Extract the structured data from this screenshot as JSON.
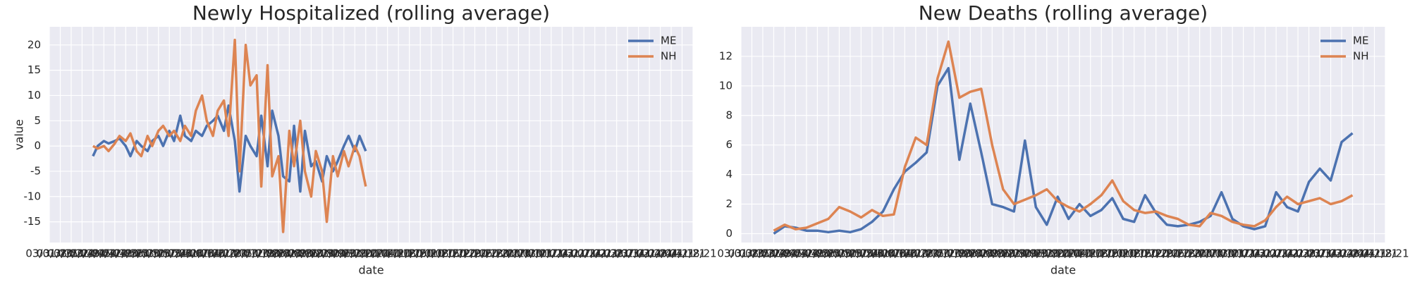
{
  "chart_data": [
    {
      "type": "line",
      "title": "Newly Hospitalized (rolling average)",
      "xlabel": "date",
      "ylabel": "value",
      "grid": true,
      "legend": "upper right",
      "xlim": [
        "03/01/20",
        "04/18/21"
      ],
      "xticks": [
        "03/01/20",
        "03/08/20",
        "03/15/20",
        "03/22/20",
        "03/29/20",
        "04/05/20",
        "04/12/20",
        "04/19/20",
        "04/26/20",
        "05/03/20",
        "05/10/20",
        "05/17/20",
        "05/24/20",
        "05/31/20",
        "06/07/20",
        "06/14/20",
        "06/21/20",
        "06/28/20",
        "07/05/20",
        "07/12/20",
        "07/19/20",
        "07/26/20",
        "08/02/20",
        "08/09/20",
        "08/16/20",
        "08/23/20",
        "08/30/20",
        "09/06/20",
        "09/13/20",
        "09/20/20",
        "09/27/20",
        "10/04/20",
        "10/11/20",
        "10/18/20",
        "10/25/20",
        "11/01/20",
        "11/08/20",
        "11/15/20",
        "11/22/20",
        "11/29/20",
        "12/06/20",
        "12/13/20",
        "12/20/20",
        "12/27/20",
        "01/03/21",
        "01/10/21",
        "01/17/21",
        "01/24/21",
        "01/31/21",
        "02/07/21",
        "02/14/21",
        "02/21/21",
        "02/28/21",
        "03/07/21",
        "03/14/21",
        "03/21/21",
        "03/28/21",
        "04/04/21",
        "04/11/21",
        "04/18/21"
      ],
      "ylim": [
        -19.1,
        23.6
      ],
      "yticks": [
        -15,
        -10,
        -5,
        0,
        5,
        10,
        15,
        20
      ],
      "x": [
        "03/29/20",
        "04/01/20",
        "04/05/20",
        "04/08/20",
        "04/12/20",
        "04/15/20",
        "04/19/20",
        "04/22/20",
        "04/26/20",
        "04/29/20",
        "05/03/20",
        "05/06/20",
        "05/10/20",
        "05/13/20",
        "05/17/20",
        "05/20/20",
        "05/24/20",
        "05/27/20",
        "05/31/20",
        "06/03/20",
        "06/07/20",
        "06/10/20",
        "06/14/20",
        "06/17/20",
        "06/21/20",
        "06/24/20",
        "06/28/20",
        "07/01/20",
        "07/05/20",
        "07/08/20",
        "07/12/20",
        "07/15/20",
        "07/19/20",
        "07/22/20",
        "07/26/20",
        "07/29/20",
        "08/02/20",
        "08/05/20",
        "08/09/20",
        "08/12/20",
        "08/16/20",
        "08/19/20",
        "08/23/20",
        "08/26/20",
        "08/30/20",
        "09/02/20",
        "09/06/20",
        "09/09/20",
        "09/13/20",
        "09/16/20",
        "09/20/20"
      ],
      "series": [
        {
          "name": "ME",
          "color": "#4c72b0",
          "values": [
            -2,
            0,
            1,
            0.5,
            1,
            1.5,
            0,
            -2,
            1,
            0,
            -1,
            1,
            2,
            0,
            3,
            1,
            6,
            2,
            1,
            3,
            2,
            4,
            5,
            6,
            3,
            8,
            1,
            -9,
            2,
            0,
            -2,
            6,
            -4,
            7,
            2,
            -6,
            -7,
            4,
            -9,
            3,
            -4,
            -3,
            -7,
            -2,
            -5,
            -3,
            0,
            2,
            -1,
            2,
            -1
          ]
        },
        {
          "name": "NH",
          "color": "#dd8452",
          "values": [
            0,
            -0.5,
            0,
            -1,
            0.5,
            2,
            1,
            2.5,
            -1,
            -2,
            2,
            0,
            3,
            4,
            2,
            3,
            1,
            4,
            2,
            7,
            10,
            5,
            2,
            7,
            9,
            2,
            21,
            -5,
            20,
            12,
            14,
            -8,
            16,
            -6,
            -2,
            -17,
            3,
            -4,
            5,
            -5,
            -10,
            -1,
            -5,
            -15,
            -2,
            -6,
            -1,
            -4,
            0,
            -2,
            -8
          ]
        }
      ]
    },
    {
      "type": "line",
      "title": "New Deaths (rolling average)",
      "xlabel": "date",
      "grid": true,
      "legend": "upper right",
      "xlim": [
        "03/01/20",
        "04/18/21"
      ],
      "xticks": [
        "03/01/20",
        "03/08/20",
        "03/15/20",
        "03/22/20",
        "03/29/20",
        "04/05/20",
        "04/12/20",
        "04/19/20",
        "04/26/20",
        "05/03/20",
        "05/10/20",
        "05/17/20",
        "05/24/20",
        "05/31/20",
        "06/07/20",
        "06/14/20",
        "06/21/20",
        "06/28/20",
        "07/05/20",
        "07/12/20",
        "07/19/20",
        "07/26/20",
        "08/02/20",
        "08/09/20",
        "08/16/20",
        "08/23/20",
        "08/30/20",
        "09/06/20",
        "09/13/20",
        "09/20/20",
        "09/27/20",
        "10/04/20",
        "10/11/20",
        "10/18/20",
        "10/25/20",
        "11/01/20",
        "11/08/20",
        "11/15/20",
        "11/22/20",
        "11/29/20",
        "12/06/20",
        "12/13/20",
        "12/20/20",
        "12/27/20",
        "01/03/21",
        "01/10/21",
        "01/17/21",
        "01/24/21",
        "01/31/21",
        "02/07/21",
        "02/14/21",
        "02/21/21",
        "02/28/21",
        "03/07/21",
        "03/14/21",
        "03/21/21",
        "03/28/21",
        "04/04/21",
        "04/11/21",
        "04/18/21"
      ],
      "ylim": [
        -0.6,
        14
      ],
      "yticks": [
        0,
        2,
        4,
        6,
        8,
        10,
        12
      ],
      "x": [
        "03/22/20",
        "03/29/20",
        "04/05/20",
        "04/12/20",
        "04/19/20",
        "04/26/20",
        "05/03/20",
        "05/10/20",
        "05/17/20",
        "05/24/20",
        "05/31/20",
        "06/07/20",
        "06/14/20",
        "06/21/20",
        "06/28/20",
        "07/05/20",
        "07/12/20",
        "07/19/20",
        "07/26/20",
        "08/02/20",
        "08/09/20",
        "08/16/20",
        "08/23/20",
        "08/30/20",
        "09/06/20",
        "09/13/20",
        "09/20/20",
        "09/27/20",
        "10/04/20",
        "10/11/20",
        "10/18/20",
        "10/25/20",
        "11/01/20",
        "11/08/20",
        "11/15/20",
        "11/22/20",
        "11/29/20",
        "12/06/20",
        "12/13/20",
        "12/20/20",
        "12/27/20",
        "01/03/21",
        "01/10/21",
        "01/17/21",
        "01/24/21",
        "01/31/21",
        "02/07/21",
        "02/14/21",
        "02/21/21",
        "02/28/21",
        "03/07/21",
        "03/14/21",
        "03/21/21",
        "03/28/21"
      ],
      "series": [
        {
          "name": "ME",
          "color": "#4c72b0",
          "values": [
            0,
            0.5,
            0.4,
            0.2,
            0.2,
            0.1,
            0.2,
            0.1,
            0.3,
            0.8,
            1.5,
            3.0,
            4.2,
            4.8,
            5.5,
            10.0,
            11.2,
            5.0,
            8.8,
            5.5,
            2.0,
            1.8,
            1.5,
            6.3,
            1.8,
            0.6,
            2.5,
            1.0,
            2.0,
            1.2,
            1.6,
            2.4,
            1.0,
            0.8,
            2.6,
            1.4,
            0.6,
            0.5,
            0.6,
            0.8,
            1.2,
            2.8,
            1.0,
            0.5,
            0.3,
            0.5,
            2.8,
            1.8,
            1.5,
            3.5,
            4.4,
            3.6,
            6.2,
            6.8
          ]
        },
        {
          "name": "NH",
          "color": "#dd8452",
          "values": [
            0.2,
            0.6,
            0.3,
            0.4,
            0.7,
            1.0,
            1.8,
            1.5,
            1.1,
            1.6,
            1.2,
            1.3,
            4.5,
            6.5,
            6.0,
            10.5,
            13.0,
            9.2,
            9.6,
            9.8,
            6.0,
            3.0,
            2.0,
            2.3,
            2.6,
            3.0,
            2.2,
            1.8,
            1.5,
            2.0,
            2.6,
            3.6,
            2.2,
            1.6,
            1.4,
            1.5,
            1.2,
            1.0,
            0.6,
            0.5,
            1.4,
            1.2,
            0.8,
            0.6,
            0.5,
            0.9,
            1.8,
            2.5,
            2.0,
            2.2,
            2.4,
            2.0,
            2.2,
            2.6
          ]
        }
      ]
    }
  ]
}
